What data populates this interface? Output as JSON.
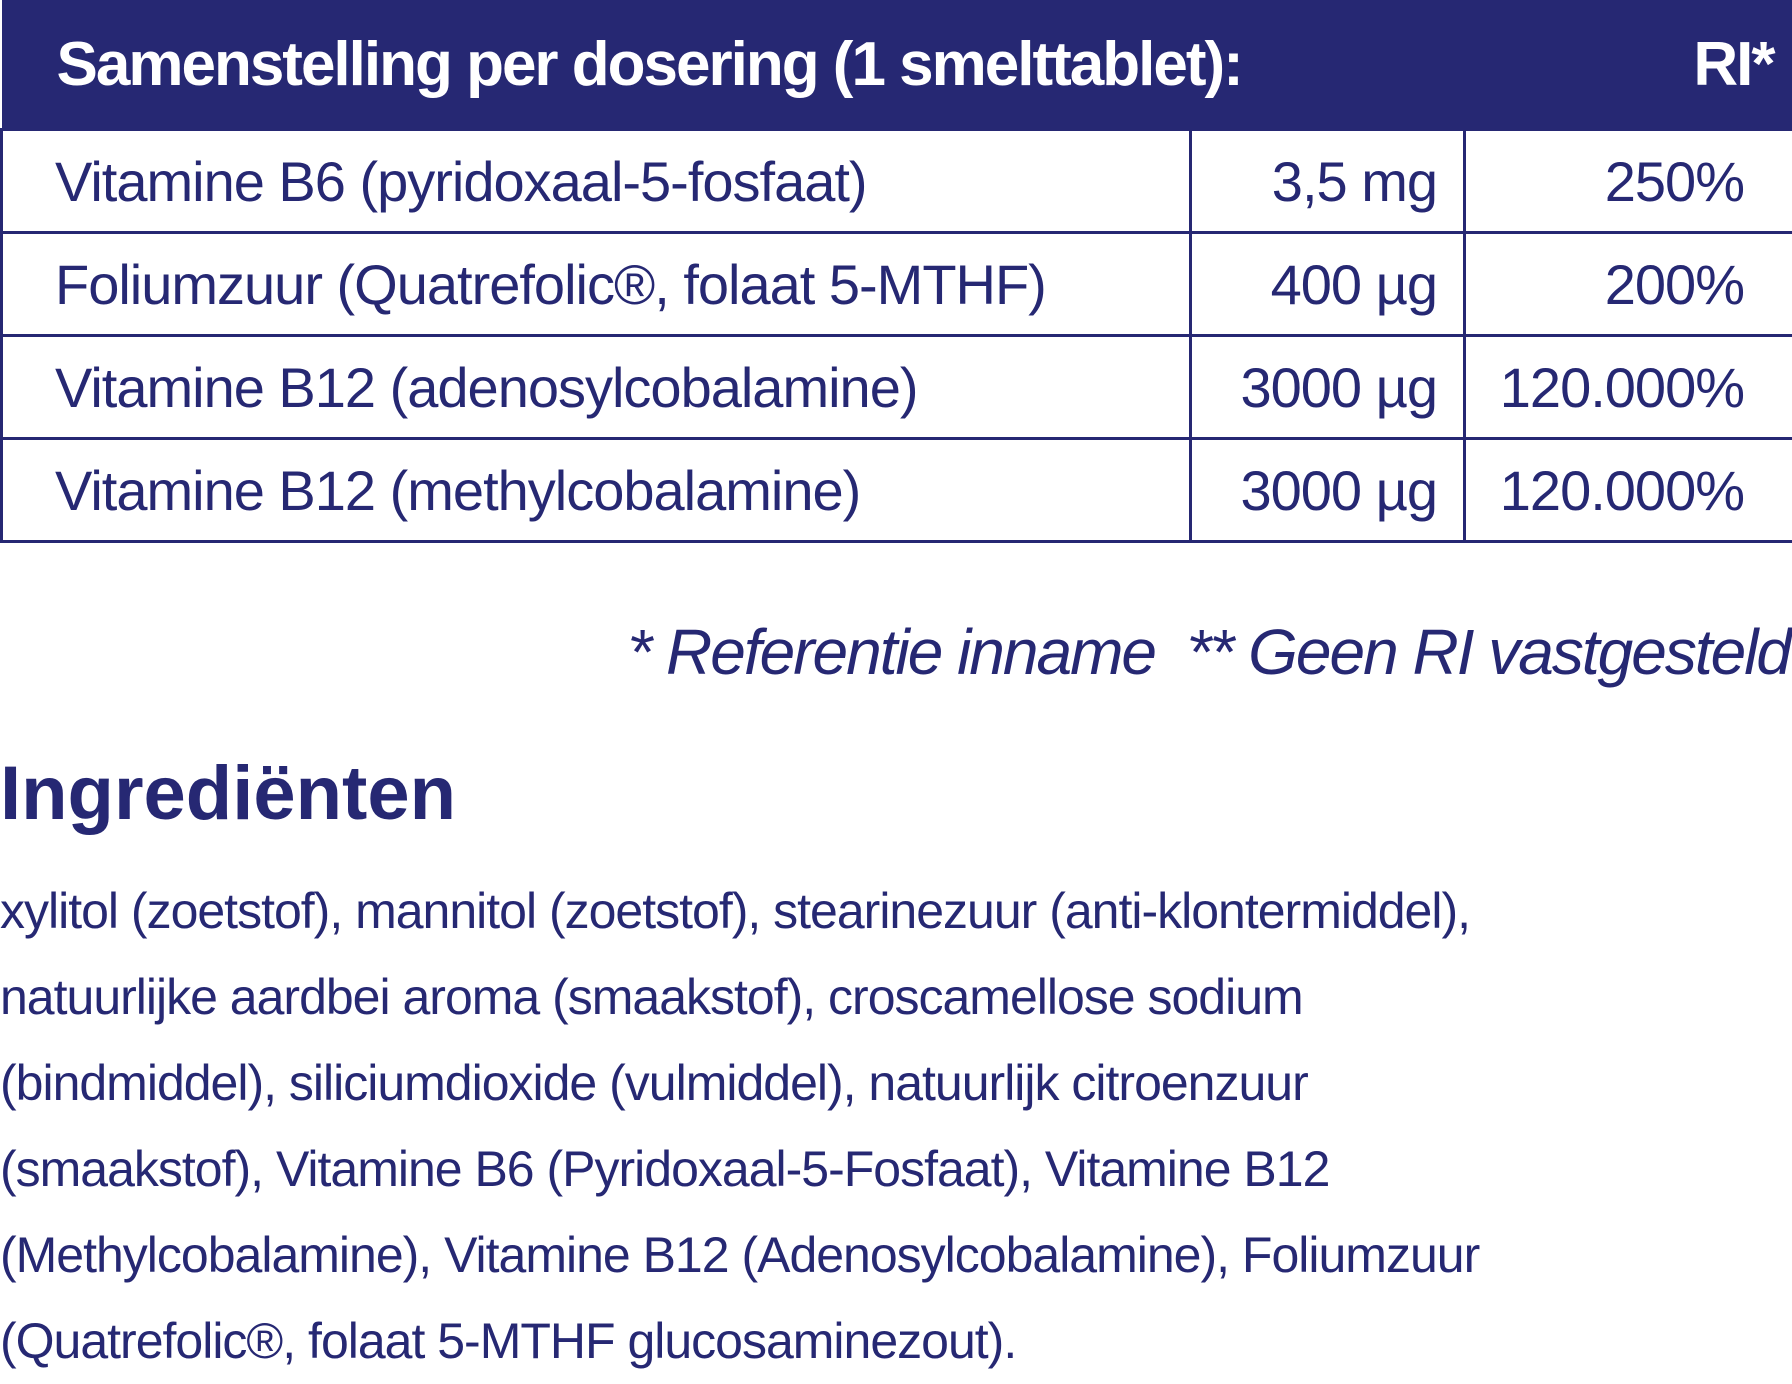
{
  "table": {
    "header": [
      "Samenstelling per dosering (1 smelttablet):",
      "RI*"
    ],
    "rows": [
      [
        "Vitamine B6 (pyridoxaal-5-fosfaat)",
        "3,5 mg",
        "250%"
      ],
      [
        "Foliumzuur (Quatrefolic®, folaat 5-MTHF)",
        "400 µg",
        "200%"
      ],
      [
        "Vitamine B12 (adenosylcobalamine)",
        "3000 µg",
        "120.000%"
      ],
      [
        "Vitamine B12 (methylcobalamine)",
        "3000 µg",
        "120.000%"
      ]
    ]
  },
  "footnote": "* Referentie inname  ** Geen RI vastgesteld",
  "ingredients": {
    "title": "Ingrediënten",
    "lines": [
      "xylitol (zoetstof), mannitol (zoetstof), stearinezuur (anti-klontermiddel),",
      "natuurlijke aardbei aroma (smaakstof), croscamellose sodium",
      "(bindmiddel), siliciumdioxide (vulmiddel), natuurlijk citroenzuur",
      "(smaakstof), Vitamine B6 (Pyridoxaal-5-Fosfaat), Vitamine B12",
      "(Methylcobalamine), Vitamine B12 (Adenosylcobalamine), Foliumzuur",
      "(Quatrefolic®, folaat 5-MTHF glucosaminezout)."
    ]
  }
}
